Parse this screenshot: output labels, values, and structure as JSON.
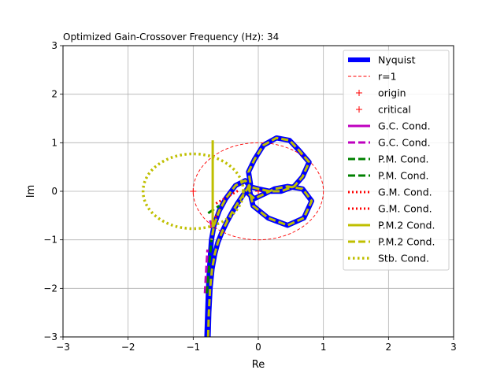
{
  "chart_data": {
    "type": "line",
    "title": "Optimized Gain-Crossover Frequency (Hz): 34",
    "xlabel": "Re",
    "ylabel": "Im",
    "xlim": [
      -3,
      3
    ],
    "ylim": [
      -3,
      3
    ],
    "xticks": [
      "−3",
      "−2",
      "−1",
      "0",
      "1",
      "2",
      "3"
    ],
    "yticks": [
      "−3",
      "−2",
      "−1",
      "0",
      "1",
      "2",
      "3"
    ],
    "grid": true,
    "legend_position": "top-right",
    "colors": {
      "nyquist": "#0000ff",
      "red": "#ff0000",
      "magenta": "#bf00bf",
      "green": "#008000",
      "olive": "#bfbf00"
    },
    "series": [
      {
        "name": "Nyquist",
        "style": "solid-thick",
        "color": "#0000ff",
        "x": [
          -0.77,
          -0.76,
          -0.74,
          -0.71,
          -0.67,
          -0.62,
          -0.56,
          -0.49,
          -0.41,
          -0.32,
          -0.22,
          -0.12,
          -0.15,
          -0.06,
          0.08,
          0.28,
          0.48,
          0.62,
          0.78,
          0.68,
          0.55,
          0.35,
          0.18,
          0.0,
          -0.15,
          -0.08,
          0.15,
          0.45,
          0.7,
          0.82,
          0.68,
          0.45,
          0.25,
          0.1,
          -0.06,
          -0.15,
          -0.13,
          -0.2,
          -0.35,
          -0.5,
          -0.6,
          -0.68,
          -0.72,
          -0.74,
          -0.76,
          -0.77,
          -0.78,
          -0.79
        ],
        "y": [
          -3.0,
          -2.5,
          -2.0,
          -1.6,
          -1.3,
          -1.05,
          -0.85,
          -0.65,
          -0.45,
          -0.25,
          -0.05,
          0.15,
          0.4,
          0.65,
          0.95,
          1.1,
          1.05,
          0.85,
          0.6,
          0.3,
          0.1,
          0.0,
          0.0,
          0.05,
          0.1,
          -0.3,
          -0.55,
          -0.7,
          -0.55,
          -0.2,
          0.05,
          0.1,
          0.05,
          -0.05,
          -0.15,
          -0.05,
          0.1,
          0.22,
          0.12,
          -0.15,
          -0.4,
          -0.7,
          -1.0,
          -1.4,
          -1.8,
          -2.2,
          -2.6,
          -3.0
        ]
      },
      {
        "name": "r=1",
        "style": "dashed-thin",
        "color": "#ff0000",
        "shape": "circle",
        "center": [
          0,
          0
        ],
        "radius": 1
      },
      {
        "name": "origin",
        "style": "plus-marker",
        "color": "#ff0000",
        "x": [
          0
        ],
        "y": [
          0
        ]
      },
      {
        "name": "critical",
        "style": "plus-marker",
        "color": "#ff0000",
        "x": [
          -1
        ],
        "y": [
          0
        ]
      },
      {
        "name": "G.C. Cond.",
        "style": "solid",
        "color": "#bf00bf",
        "x": [
          -0.74,
          -0.71
        ],
        "y": [
          -0.6,
          -0.75
        ]
      },
      {
        "name": "G.C. Cond.",
        "style": "dashed",
        "color": "#bf00bf",
        "x": [
          -0.82,
          -0.8,
          -0.78
        ],
        "y": [
          -2.1,
          -1.6,
          -1.2
        ]
      },
      {
        "name": "P.M. Cond.",
        "style": "dashed",
        "color": "#008000",
        "x": [
          -0.77,
          -0.6
        ],
        "y": [
          -0.45,
          -0.3
        ]
      },
      {
        "name": "P.M. Cond.",
        "style": "dashed",
        "color": "#008000",
        "x": [
          -0.79,
          -0.72
        ],
        "y": [
          -2.1,
          -1.0
        ]
      },
      {
        "name": "G.M. Cond.",
        "style": "dotted",
        "color": "#ff0000",
        "x": [
          -0.65,
          -0.3
        ],
        "y": [
          -0.25,
          0.02
        ]
      },
      {
        "name": "G.M. Cond.",
        "style": "dotted",
        "color": "#ff0000",
        "x": [
          -0.75,
          -0.6
        ],
        "y": [
          -0.75,
          -0.4
        ]
      },
      {
        "name": "P.M.2 Cond.",
        "style": "solid",
        "color": "#bfbf00",
        "x": [
          -0.7,
          -0.7
        ],
        "y": [
          1.05,
          -0.75
        ]
      },
      {
        "name": "P.M.2 Cond.",
        "style": "dashed",
        "color": "#bfbf00",
        "x": [
          -0.77,
          -0.76,
          -0.74,
          -0.71,
          -0.67,
          -0.62,
          -0.56,
          -0.49,
          -0.41,
          -0.32,
          -0.22,
          -0.12,
          -0.15,
          -0.06,
          0.08,
          0.28,
          0.48,
          0.62,
          0.78,
          0.68,
          0.55,
          0.35,
          0.18,
          0.0,
          -0.15,
          -0.08,
          0.15,
          0.45,
          0.7,
          0.82,
          0.68,
          0.45,
          0.25,
          0.1,
          -0.06,
          -0.15,
          -0.13,
          -0.2,
          -0.35,
          -0.5,
          -0.6,
          -0.68,
          -0.72
        ],
        "y": [
          -3.0,
          -2.5,
          -2.0,
          -1.6,
          -1.3,
          -1.05,
          -0.85,
          -0.65,
          -0.45,
          -0.25,
          -0.05,
          0.15,
          0.4,
          0.65,
          0.95,
          1.1,
          1.05,
          0.85,
          0.6,
          0.3,
          0.1,
          0.0,
          0.0,
          0.05,
          0.1,
          -0.3,
          -0.55,
          -0.7,
          -0.55,
          -0.2,
          0.05,
          0.1,
          0.05,
          -0.05,
          -0.15,
          -0.05,
          0.1,
          0.22,
          0.12,
          -0.15,
          -0.4,
          -0.7,
          -1.0
        ]
      },
      {
        "name": "Stb. Cond.",
        "style": "dotted-thick",
        "color": "#bfbf00",
        "shape": "circle",
        "center": [
          -1,
          0
        ],
        "radius": 0.77
      }
    ]
  }
}
